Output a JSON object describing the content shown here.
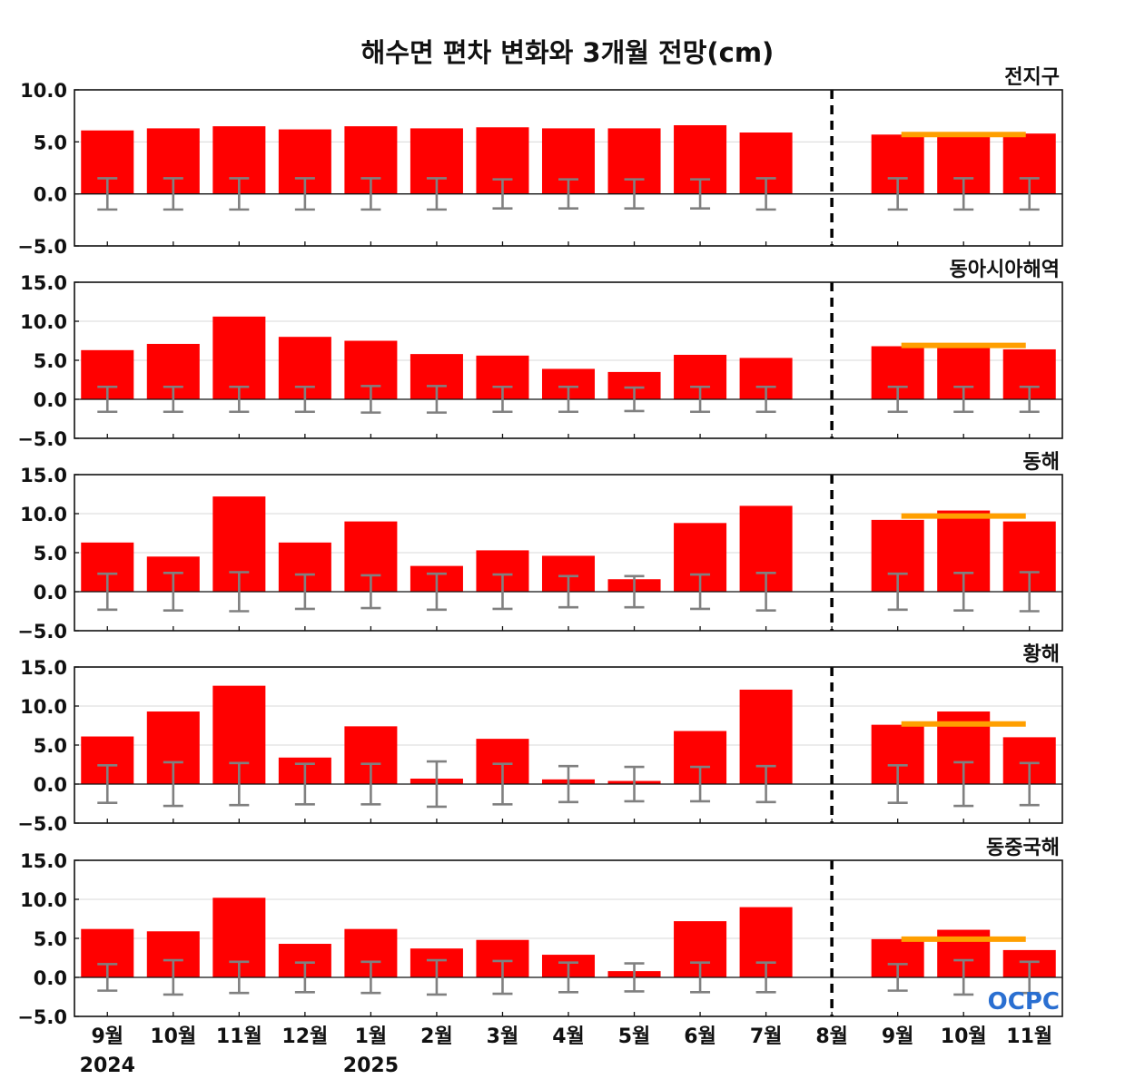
{
  "chart_data": {
    "type": "bar",
    "title": "해수면 편차 변화와 3개월 전망(cm)",
    "categories": [
      "9월",
      "10월",
      "11월",
      "12월",
      "1월",
      "2월",
      "3월",
      "4월",
      "5월",
      "6월",
      "7월",
      "8월",
      "9월",
      "10월",
      "11월"
    ],
    "year_labels": [
      {
        "label": "2024",
        "category_index": 0
      },
      {
        "label": "2025",
        "category_index": 4
      }
    ],
    "logo": "OCPC",
    "colors": {
      "bar": "#ff0000",
      "errorbar": "#808080",
      "forecast_line": "#ff9f00",
      "divider": "#000000",
      "grid": "#d9d9d9"
    },
    "divider_category_index": 11,
    "forecast_category_indices": [
      12,
      13,
      14
    ],
    "grid": true,
    "panels": [
      {
        "label": "전지구",
        "ylim": [
          -5,
          10
        ],
        "yticks": [
          10,
          5,
          0,
          -5
        ],
        "values": [
          6.1,
          6.3,
          6.5,
          6.2,
          6.5,
          6.3,
          6.4,
          6.3,
          6.3,
          6.6,
          5.9,
          0,
          5.7,
          5.8,
          5.8
        ],
        "error": [
          1.5,
          1.5,
          1.5,
          1.5,
          1.5,
          1.5,
          1.4,
          1.4,
          1.4,
          1.4,
          1.5,
          null,
          1.5,
          1.5,
          1.5
        ],
        "forecast": 5.7
      },
      {
        "label": "동아시아해역",
        "ylim": [
          -5,
          15
        ],
        "yticks": [
          15,
          10,
          5,
          0,
          -5
        ],
        "values": [
          6.3,
          7.1,
          10.6,
          8.0,
          7.5,
          5.8,
          5.6,
          3.9,
          3.5,
          5.7,
          5.3,
          0,
          6.8,
          7.0,
          6.4
        ],
        "error": [
          1.6,
          1.6,
          1.6,
          1.6,
          1.7,
          1.7,
          1.6,
          1.6,
          1.5,
          1.6,
          1.6,
          null,
          1.6,
          1.6,
          1.6
        ],
        "forecast": 6.9
      },
      {
        "label": "동해",
        "ylim": [
          -5,
          15
        ],
        "yticks": [
          15,
          10,
          5,
          0,
          -5
        ],
        "values": [
          6.3,
          4.5,
          12.2,
          6.3,
          9.0,
          3.3,
          5.3,
          4.6,
          1.6,
          8.8,
          11.0,
          0,
          9.2,
          10.4,
          9.0
        ],
        "error": [
          2.3,
          2.4,
          2.5,
          2.2,
          2.1,
          2.3,
          2.2,
          2.0,
          2.0,
          2.2,
          2.4,
          null,
          2.3,
          2.4,
          2.5
        ],
        "forecast": 9.7
      },
      {
        "label": "황해",
        "ylim": [
          -5,
          15
        ],
        "yticks": [
          15,
          10,
          5,
          0,
          -5
        ],
        "values": [
          6.1,
          9.3,
          12.6,
          3.4,
          7.4,
          0.7,
          5.8,
          0.6,
          0.4,
          6.8,
          12.1,
          0,
          7.6,
          9.3,
          6.0
        ],
        "error": [
          2.4,
          2.8,
          2.7,
          2.6,
          2.6,
          2.9,
          2.6,
          2.3,
          2.2,
          2.2,
          2.3,
          null,
          2.4,
          2.8,
          2.7
        ],
        "forecast": 7.7
      },
      {
        "label": "동중국해",
        "ylim": [
          -5,
          15
        ],
        "yticks": [
          15,
          10,
          5,
          0,
          -5
        ],
        "values": [
          6.2,
          5.9,
          10.2,
          4.3,
          6.2,
          3.7,
          4.8,
          2.9,
          0.8,
          7.2,
          9.0,
          0,
          4.9,
          6.1,
          3.5
        ],
        "error": [
          1.7,
          2.2,
          2.0,
          1.9,
          2.0,
          2.2,
          2.1,
          1.9,
          1.8,
          1.9,
          1.9,
          null,
          1.7,
          2.2,
          2.0
        ],
        "forecast": 4.9
      }
    ]
  }
}
